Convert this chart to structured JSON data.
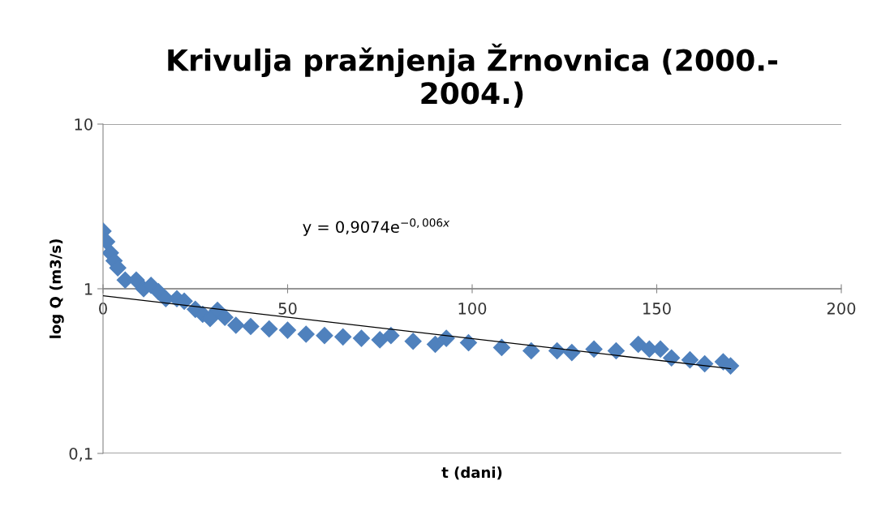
{
  "chart_data": {
    "type": "scatter",
    "title": "Krivulja pražnjenja Žrnovnica (2000.-\n2004.)",
    "xlabel": "t (dani)",
    "ylabel": "log Q (m3/s)",
    "annotations": [
      "y = 0,9074e$^{−0,006x}$"
    ],
    "log": "y",
    "grid": "y",
    "marker": "diamond",
    "xlim": [
      0,
      200
    ],
    "xticks": [
      0,
      50,
      100,
      150,
      200
    ],
    "ylim": [
      0.1,
      10
    ],
    "yticks": [
      {
        "value": 0.1,
        "label": "0,1"
      },
      1,
      10
    ],
    "series": [
      {
        "color": "#4f81bd",
        "x": [
          0,
          1,
          2,
          3,
          4,
          6,
          9,
          11,
          13,
          15,
          17,
          20,
          22,
          25,
          27,
          29,
          31,
          33,
          36,
          40,
          45,
          50,
          55,
          60,
          65,
          70,
          75,
          78,
          84,
          90,
          93,
          99,
          108,
          116,
          123,
          127,
          133,
          139,
          145,
          148,
          151,
          154,
          159,
          163,
          168,
          170
        ],
        "values": [
          2.24,
          1.93,
          1.65,
          1.48,
          1.34,
          1.13,
          1.13,
          1.0,
          1.05,
          0.96,
          0.87,
          0.87,
          0.84,
          0.75,
          0.7,
          0.66,
          0.74,
          0.67,
          0.6,
          0.59,
          0.57,
          0.56,
          0.53,
          0.52,
          0.51,
          0.5,
          0.49,
          0.52,
          0.48,
          0.46,
          0.5,
          0.47,
          0.44,
          0.42,
          0.42,
          0.41,
          0.43,
          0.42,
          0.46,
          0.43,
          0.43,
          0.38,
          0.37,
          0.35,
          0.36,
          0.34
        ]
      },
      {
        "type": "line",
        "color": "#000000",
        "marker": "none",
        "x": [
          0,
          170
        ],
        "values": [
          0.907,
          0.327
        ]
      }
    ]
  }
}
